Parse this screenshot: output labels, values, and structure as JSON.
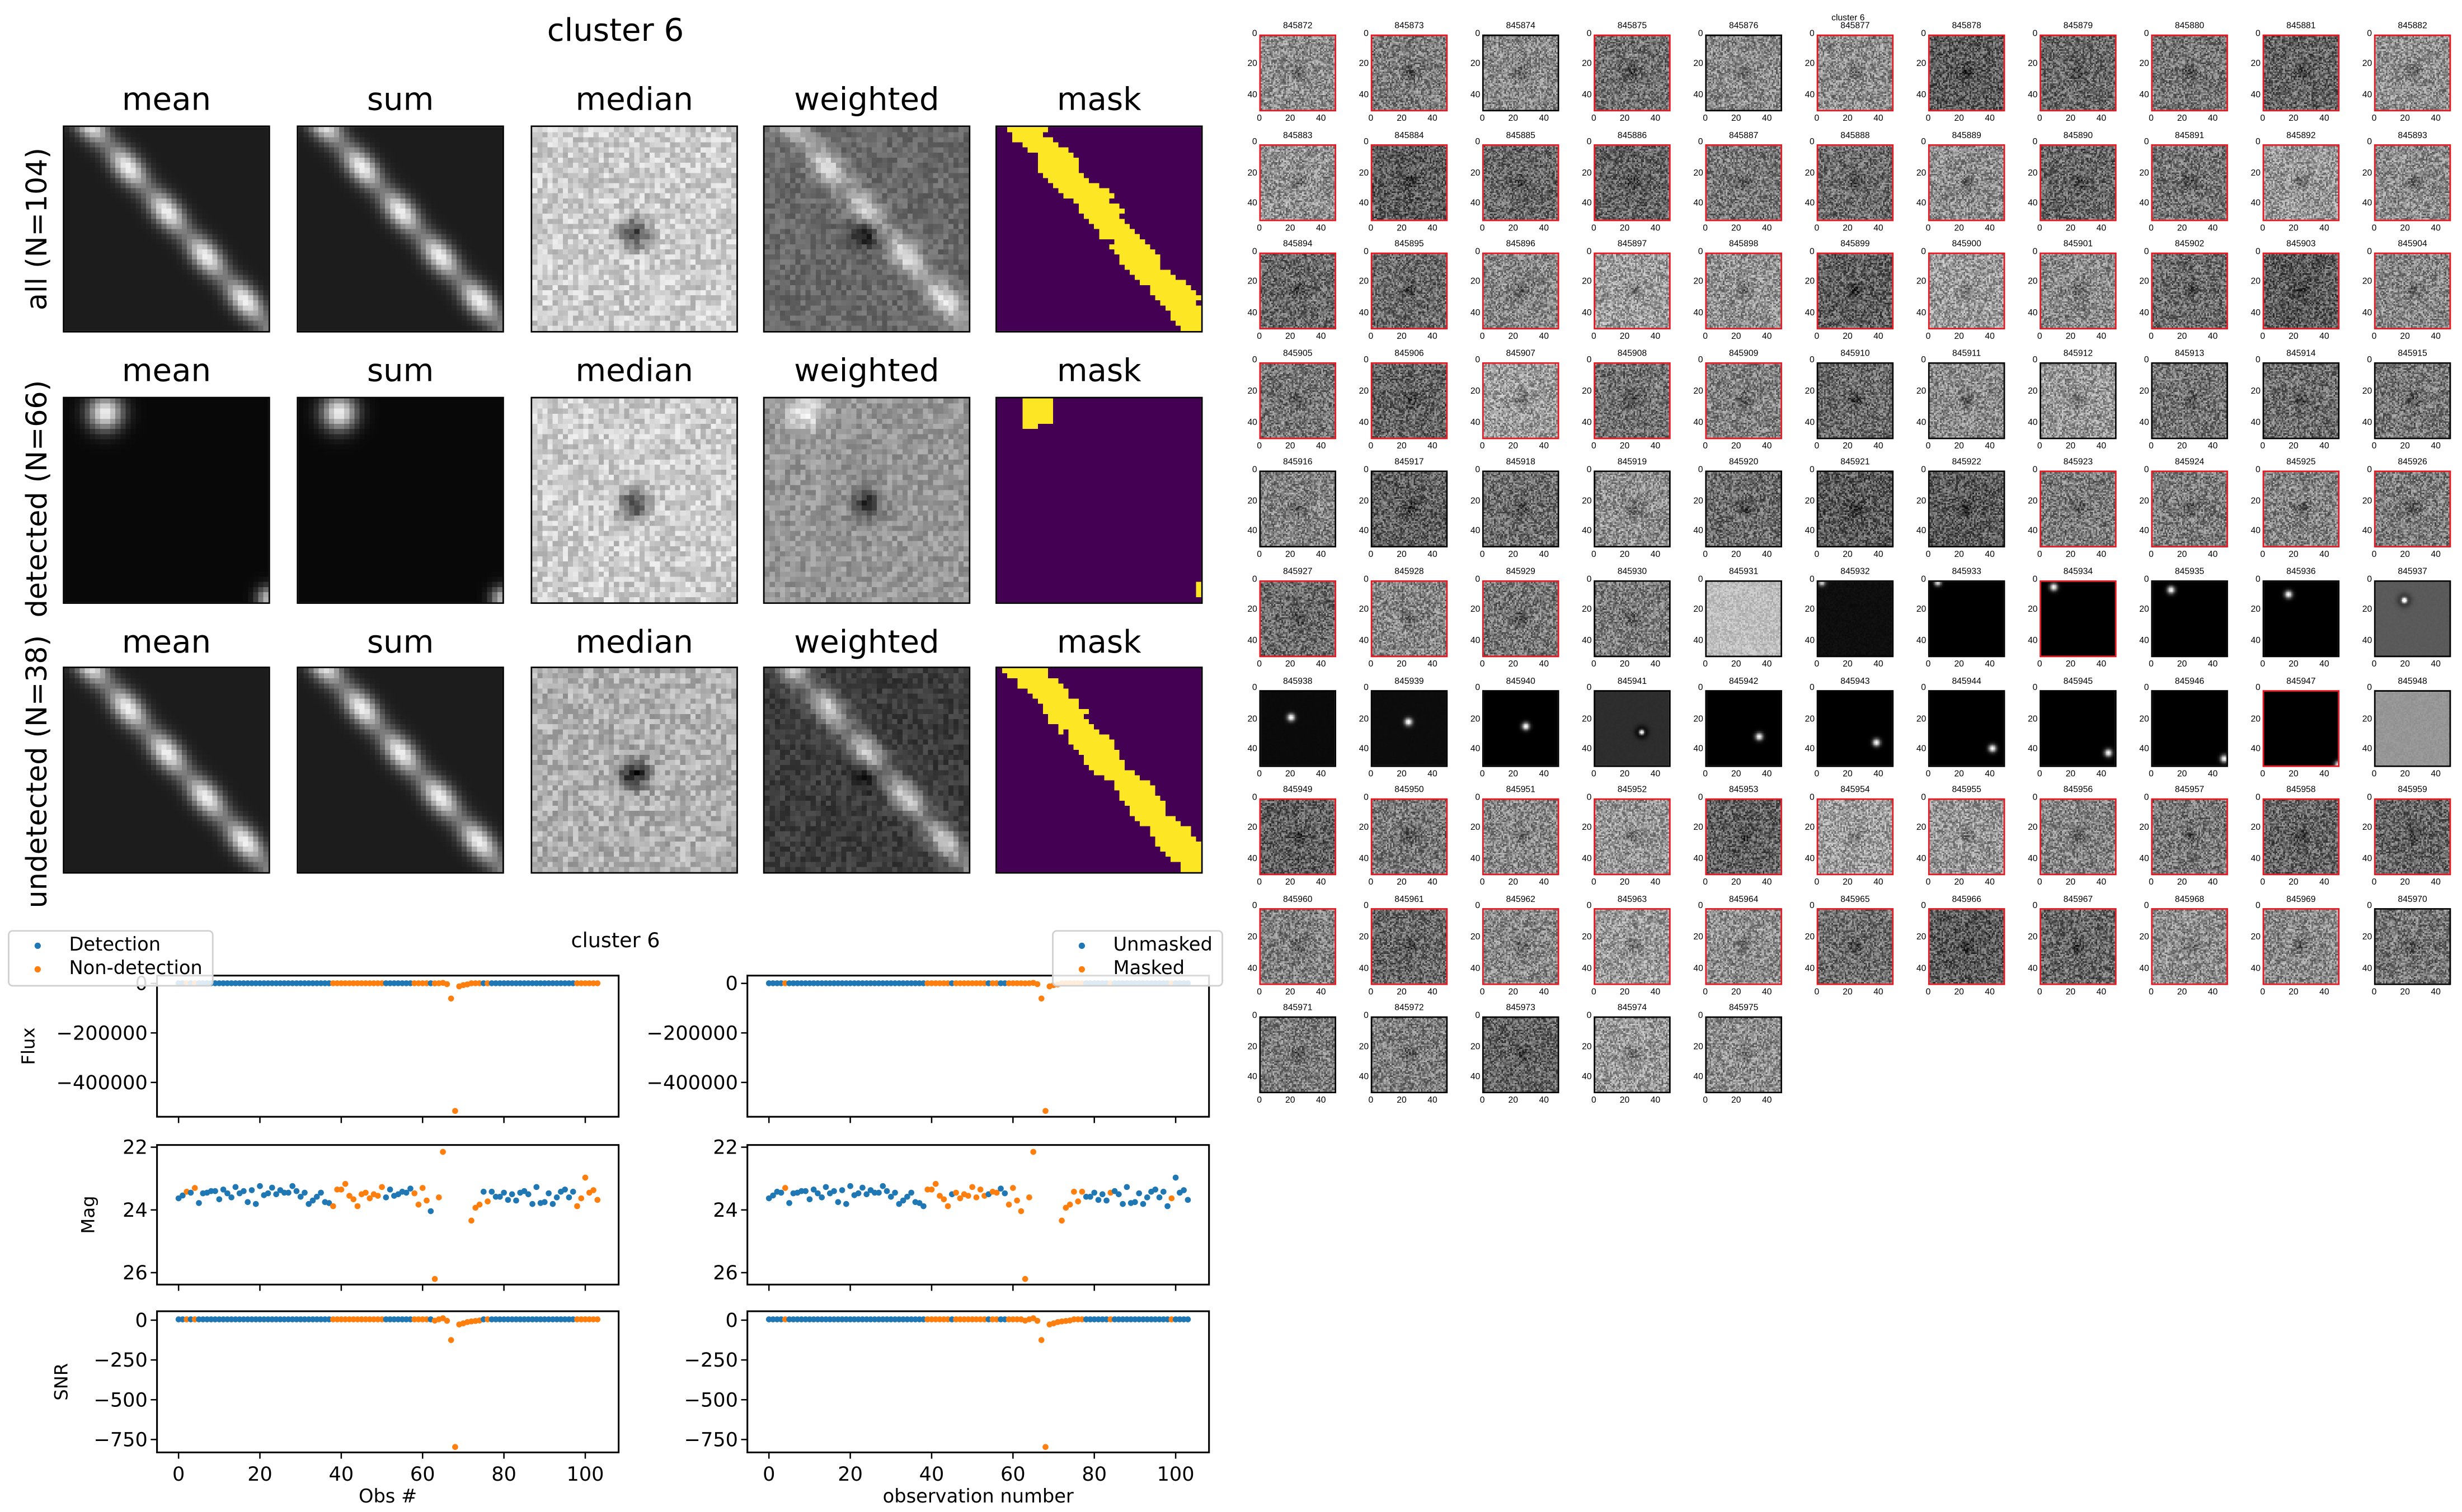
{
  "top": {
    "title": "cluster 6",
    "columns": [
      "mean",
      "sum",
      "median",
      "weighted",
      "mask"
    ],
    "rows": [
      "all (N=104)",
      "detected (N=66)",
      "undetected (N=38)"
    ],
    "mask_colors": {
      "off": "#440154",
      "on": "#fde725"
    }
  },
  "chart_data": {
    "type": "scatter",
    "title": "cluster 6",
    "colors": {
      "blue": "#1f77b4",
      "orange": "#ff7f0e"
    },
    "xlim": [
      -5.3,
      108.2
    ],
    "xticks": [
      0,
      20,
      40,
      60,
      80,
      100
    ],
    "xtick_labels": [
      "0",
      "20",
      "40",
      "60",
      "80",
      "100"
    ],
    "panels": [
      {
        "legend": [
          "Detection",
          "Non-detection"
        ],
        "xlabel": "Obs #",
        "flag": "nondetected",
        "show_ylabels": true
      },
      {
        "legend": [
          "Unmasked",
          "Masked"
        ],
        "xlabel": "observation number",
        "flag": "masked",
        "show_ylabels": false
      }
    ],
    "rows": [
      {
        "key": "flux",
        "ylabel": "Flux",
        "ylim": [
          -538600,
          31500
        ],
        "yticks": [
          0,
          -200000,
          -400000
        ],
        "ytick_labels": [
          "0",
          "−200000",
          "−400000"
        ],
        "invert": false
      },
      {
        "key": "mag",
        "ylabel": "Mag",
        "ylim": [
          21.93,
          26.38
        ],
        "yticks": [
          22,
          24,
          26
        ],
        "ytick_labels": [
          "22",
          "24",
          "26"
        ],
        "invert": true
      },
      {
        "key": "snr",
        "ylabel": "SNR",
        "ylim": [
          -831,
          56
        ],
        "yticks": [
          0,
          -250,
          -500,
          -750
        ],
        "ytick_labels": [
          "0",
          "−250",
          "−500",
          "−750"
        ],
        "invert": false
      }
    ],
    "mag": [
      23.63,
      23.54,
      23.42,
      23.45,
      23.3,
      23.78,
      23.47,
      23.45,
      23.4,
      23.4,
      23.66,
      23.35,
      23.47,
      23.6,
      23.27,
      23.47,
      23.4,
      23.75,
      23.37,
      23.81,
      23.24,
      23.53,
      23.47,
      23.29,
      23.5,
      23.37,
      23.45,
      23.45,
      23.24,
      23.4,
      23.58,
      23.45,
      23.81,
      23.7,
      23.58,
      23.45,
      23.75,
      23.78,
      23.88,
      23.35,
      23.35,
      23.17,
      23.55,
      23.66,
      23.88,
      23.5,
      23.45,
      23.63,
      23.5,
      23.55,
      23.27,
      23.6,
      23.35,
      23.55,
      23.5,
      23.42,
      23.45,
      23.32,
      23.47,
      23.83,
      23.3,
      23.7,
      24.04,
      26.2,
      23.6,
      22.15,
      null,
      null,
      null,
      null,
      null,
      null,
      24.34,
      23.93,
      23.83,
      23.42,
      23.73,
      23.42,
      23.58,
      23.58,
      23.45,
      23.68,
      23.5,
      23.7,
      23.45,
      23.4,
      23.5,
      23.81,
      23.27,
      23.78,
      23.75,
      23.47,
      23.81,
      23.6,
      23.42,
      23.35,
      23.6,
      23.42,
      23.88,
      23.63,
      22.97,
      23.45,
      23.37,
      23.68
    ],
    "flux": [
      600,
      600,
      600,
      600,
      600,
      600,
      600,
      600,
      600,
      600,
      600,
      600,
      600,
      600,
      600,
      600,
      600,
      600,
      600,
      600,
      600,
      600,
      600,
      600,
      600,
      600,
      600,
      600,
      600,
      600,
      600,
      600,
      600,
      600,
      600,
      600,
      600,
      600,
      600,
      600,
      600,
      600,
      600,
      600,
      600,
      600,
      600,
      600,
      600,
      600,
      600,
      600,
      600,
      600,
      600,
      600,
      600,
      600,
      600,
      600,
      600,
      600,
      600,
      50,
      600,
      2200,
      -3000,
      -61000,
      -515000,
      -12000,
      -7000,
      -4000,
      400,
      600,
      600,
      600,
      600,
      600,
      600,
      600,
      600,
      600,
      600,
      600,
      600,
      600,
      600,
      600,
      600,
      600,
      600,
      600,
      600,
      600,
      600,
      600,
      600,
      600,
      600,
      600,
      600,
      600,
      600,
      600
    ],
    "snr": [
      5,
      5,
      5,
      5,
      5,
      5,
      5,
      5,
      5,
      5,
      5,
      5,
      5,
      5,
      5,
      5,
      5,
      5,
      5,
      5,
      5,
      5,
      5,
      5,
      5,
      5,
      5,
      5,
      5,
      5,
      5,
      5,
      5,
      5,
      5,
      5,
      5,
      5,
      5,
      5,
      5,
      5,
      5,
      5,
      5,
      5,
      5,
      5,
      5,
      5,
      5,
      5,
      5,
      5,
      5,
      5,
      5,
      5,
      5,
      5,
      5,
      5,
      5,
      -3,
      5,
      12,
      -4,
      -125,
      -797,
      -27,
      -20,
      -12,
      -8,
      -5,
      -2,
      5,
      5,
      5,
      5,
      5,
      5,
      5,
      5,
      5,
      5,
      5,
      5,
      5,
      5,
      5,
      5,
      5,
      5,
      5,
      5,
      5,
      5,
      5,
      5,
      5,
      5,
      5,
      5,
      5
    ],
    "nondetected": [
      0,
      0,
      1,
      0,
      1,
      0,
      0,
      0,
      0,
      0,
      0,
      0,
      0,
      0,
      0,
      0,
      0,
      0,
      0,
      0,
      0,
      0,
      0,
      0,
      0,
      0,
      0,
      0,
      0,
      0,
      0,
      0,
      0,
      0,
      0,
      0,
      0,
      0,
      1,
      1,
      1,
      1,
      1,
      1,
      1,
      1,
      1,
      1,
      1,
      1,
      1,
      0,
      0,
      0,
      0,
      0,
      0,
      0,
      1,
      1,
      1,
      1,
      0,
      1,
      1,
      1,
      1,
      1,
      1,
      1,
      1,
      1,
      1,
      1,
      1,
      0,
      1,
      0,
      0,
      0,
      0,
      0,
      0,
      0,
      0,
      0,
      0,
      0,
      0,
      0,
      0,
      0,
      0,
      0,
      0,
      0,
      0,
      0,
      1,
      1,
      1,
      1,
      1,
      1
    ],
    "masked": [
      0,
      0,
      0,
      0,
      1,
      0,
      0,
      0,
      0,
      0,
      0,
      0,
      0,
      0,
      0,
      0,
      0,
      0,
      0,
      0,
      0,
      0,
      0,
      0,
      0,
      0,
      0,
      0,
      0,
      0,
      0,
      0,
      0,
      0,
      0,
      0,
      0,
      0,
      0,
      1,
      1,
      1,
      1,
      1,
      1,
      0,
      1,
      1,
      1,
      1,
      1,
      1,
      1,
      1,
      0,
      1,
      1,
      0,
      0,
      1,
      1,
      1,
      1,
      1,
      1,
      1,
      1,
      1,
      1,
      1,
      1,
      1,
      1,
      1,
      1,
      1,
      1,
      1,
      0,
      0,
      0,
      0,
      0,
      0,
      1,
      0,
      0,
      0,
      0,
      0,
      0,
      0,
      0,
      0,
      0,
      0,
      0,
      0,
      0,
      1,
      0,
      0,
      0,
      0
    ]
  },
  "thumbnails": {
    "title": "cluster 6",
    "tick_labels": [
      "0",
      "20",
      "40"
    ],
    "items": [
      {
        "id": "845872",
        "masked": true
      },
      {
        "id": "845873",
        "masked": true
      },
      {
        "id": "845874",
        "masked": false
      },
      {
        "id": "845875",
        "masked": true
      },
      {
        "id": "845876",
        "masked": false
      },
      {
        "id": "845877",
        "masked": true
      },
      {
        "id": "845878",
        "masked": true
      },
      {
        "id": "845879",
        "masked": true
      },
      {
        "id": "845880",
        "masked": true
      },
      {
        "id": "845881",
        "masked": true
      },
      {
        "id": "845882",
        "masked": true
      },
      {
        "id": "845883",
        "masked": true
      },
      {
        "id": "845884",
        "masked": true
      },
      {
        "id": "845885",
        "masked": true
      },
      {
        "id": "845886",
        "masked": true
      },
      {
        "id": "845887",
        "masked": true
      },
      {
        "id": "845888",
        "masked": true
      },
      {
        "id": "845889",
        "masked": true
      },
      {
        "id": "845890",
        "masked": true
      },
      {
        "id": "845891",
        "masked": true
      },
      {
        "id": "845892",
        "masked": true
      },
      {
        "id": "845893",
        "masked": true
      },
      {
        "id": "845894",
        "masked": true
      },
      {
        "id": "845895",
        "masked": true
      },
      {
        "id": "845896",
        "masked": true
      },
      {
        "id": "845897",
        "masked": true
      },
      {
        "id": "845898",
        "masked": true
      },
      {
        "id": "845899",
        "masked": true
      },
      {
        "id": "845900",
        "masked": true
      },
      {
        "id": "845901",
        "masked": true
      },
      {
        "id": "845902",
        "masked": true
      },
      {
        "id": "845903",
        "masked": true
      },
      {
        "id": "845904",
        "masked": true
      },
      {
        "id": "845905",
        "masked": true
      },
      {
        "id": "845906",
        "masked": true
      },
      {
        "id": "845907",
        "masked": true
      },
      {
        "id": "845908",
        "masked": true
      },
      {
        "id": "845909",
        "masked": true
      },
      {
        "id": "845910",
        "masked": false
      },
      {
        "id": "845911",
        "masked": false
      },
      {
        "id": "845912",
        "masked": false
      },
      {
        "id": "845913",
        "masked": false
      },
      {
        "id": "845914",
        "masked": false
      },
      {
        "id": "845915",
        "masked": false
      },
      {
        "id": "845916",
        "masked": false
      },
      {
        "id": "845917",
        "masked": false
      },
      {
        "id": "845918",
        "masked": false
      },
      {
        "id": "845919",
        "masked": false
      },
      {
        "id": "845920",
        "masked": false
      },
      {
        "id": "845921",
        "masked": false
      },
      {
        "id": "845922",
        "masked": false
      },
      {
        "id": "845923",
        "masked": true
      },
      {
        "id": "845924",
        "masked": true
      },
      {
        "id": "845925",
        "masked": true
      },
      {
        "id": "845926",
        "masked": true
      },
      {
        "id": "845927",
        "masked": true
      },
      {
        "id": "845928",
        "masked": true
      },
      {
        "id": "845929",
        "masked": true
      },
      {
        "id": "845930",
        "masked": false
      },
      {
        "id": "845931",
        "masked": false
      },
      {
        "id": "845932",
        "masked": false
      },
      {
        "id": "845933",
        "masked": false
      },
      {
        "id": "845934",
        "masked": true
      },
      {
        "id": "845935",
        "masked": false
      },
      {
        "id": "845936",
        "masked": false
      },
      {
        "id": "845937",
        "masked": false
      },
      {
        "id": "845938",
        "masked": false
      },
      {
        "id": "845939",
        "masked": false
      },
      {
        "id": "845940",
        "masked": false
      },
      {
        "id": "845941",
        "masked": false
      },
      {
        "id": "845942",
        "masked": false
      },
      {
        "id": "845943",
        "masked": false
      },
      {
        "id": "845944",
        "masked": false
      },
      {
        "id": "845945",
        "masked": false
      },
      {
        "id": "845946",
        "masked": false
      },
      {
        "id": "845947",
        "masked": true
      },
      {
        "id": "845948",
        "masked": false
      },
      {
        "id": "845949",
        "masked": true
      },
      {
        "id": "845950",
        "masked": true
      },
      {
        "id": "845951",
        "masked": true
      },
      {
        "id": "845952",
        "masked": true
      },
      {
        "id": "845953",
        "masked": true
      },
      {
        "id": "845954",
        "masked": true
      },
      {
        "id": "845955",
        "masked": true
      },
      {
        "id": "845956",
        "masked": true
      },
      {
        "id": "845957",
        "masked": true
      },
      {
        "id": "845958",
        "masked": true
      },
      {
        "id": "845959",
        "masked": true
      },
      {
        "id": "845960",
        "masked": true
      },
      {
        "id": "845961",
        "masked": true
      },
      {
        "id": "845962",
        "masked": true
      },
      {
        "id": "845963",
        "masked": true
      },
      {
        "id": "845964",
        "masked": true
      },
      {
        "id": "845965",
        "masked": true
      },
      {
        "id": "845966",
        "masked": true
      },
      {
        "id": "845967",
        "masked": true
      },
      {
        "id": "845968",
        "masked": true
      },
      {
        "id": "845969",
        "masked": true
      },
      {
        "id": "845970",
        "masked": false
      },
      {
        "id": "845971",
        "masked": false
      },
      {
        "id": "845972",
        "masked": false
      },
      {
        "id": "845973",
        "masked": false
      },
      {
        "id": "845974",
        "masked": false
      },
      {
        "id": "845975",
        "masked": false
      }
    ]
  }
}
